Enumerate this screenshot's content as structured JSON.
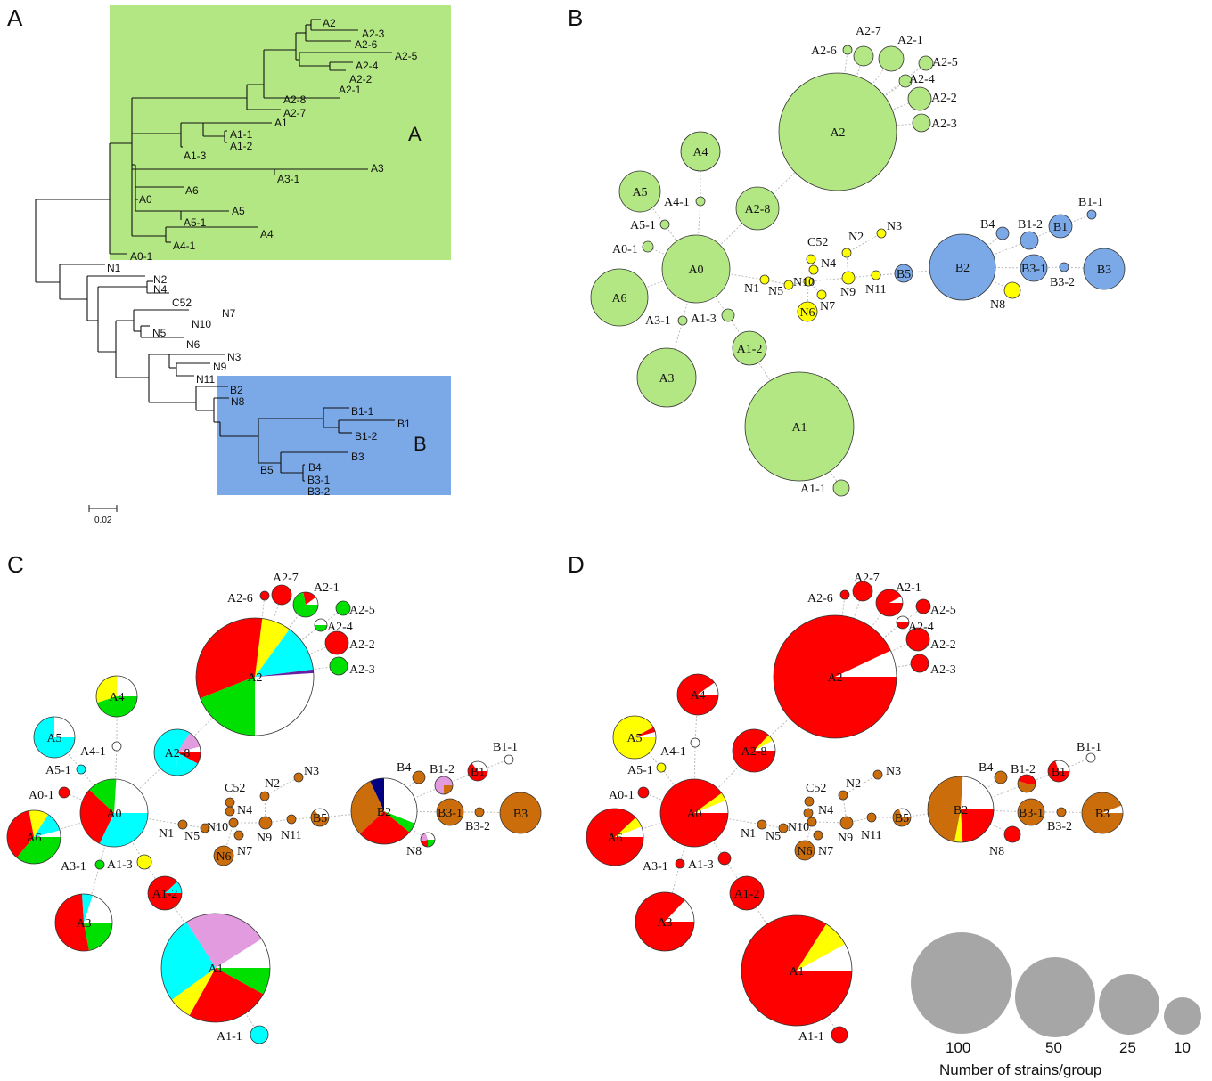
{
  "panels": {
    "a": "A",
    "b": "B",
    "c": "C",
    "d": "D"
  },
  "clade_labels": {
    "a": "A",
    "b": "B"
  },
  "tree": {
    "scale_label": "0.02",
    "leaves": [
      "A2",
      "A2-3",
      "A2-6",
      "A2-5",
      "A2-4",
      "A2-2",
      "A2-1",
      "A2-8",
      "A2-7",
      "A1",
      "A1-1",
      "A1-2",
      "A1-3",
      "A3",
      "A3-1",
      "A6",
      "A0",
      "A5",
      "A5-1",
      "A4",
      "A4-1",
      "A0-1",
      "N1",
      "N2",
      "N4",
      "C52",
      "N7",
      "N10",
      "N5",
      "N6",
      "N3",
      "N9",
      "N11",
      "B2",
      "N8",
      "B1-1",
      "B1",
      "B1-2",
      "B5",
      "B3",
      "B4",
      "B3-1",
      "B3-2"
    ]
  },
  "colors": {
    "cladeA": "#b3e783",
    "cladeB": "#7ba8e6",
    "nodeA": "#b3e783",
    "nodeB": "#7ba8e6",
    "nodeN": "#ffff00",
    "red": "#ff0000",
    "green": "#00e000",
    "white": "#ffffff",
    "cyan": "#00ffff",
    "yellow": "#ffff00",
    "purple": "#6a1fa0",
    "pink": "#e39be0",
    "brown": "#cc6d0c",
    "navy": "#000080",
    "legend": "#a6a6a6"
  },
  "nodes": [
    "A0",
    "A0-1",
    "A1",
    "A1-1",
    "A1-2",
    "A1-3",
    "A2",
    "A2-1",
    "A2-2",
    "A2-3",
    "A2-4",
    "A2-5",
    "A2-6",
    "A2-7",
    "A2-8",
    "A3",
    "A3-1",
    "A4",
    "A4-1",
    "A5",
    "A5-1",
    "A6",
    "N1",
    "N2",
    "N3",
    "N4",
    "N5",
    "N6",
    "N7",
    "N8",
    "N9",
    "N10",
    "N11",
    "C52",
    "B1",
    "B1-1",
    "B1-2",
    "B2",
    "B3",
    "B3-1",
    "B3-2",
    "B4",
    "B5"
  ],
  "legend": {
    "title": "Number of strains/group",
    "sizes": [
      "100",
      "50",
      "25",
      "10"
    ]
  }
}
